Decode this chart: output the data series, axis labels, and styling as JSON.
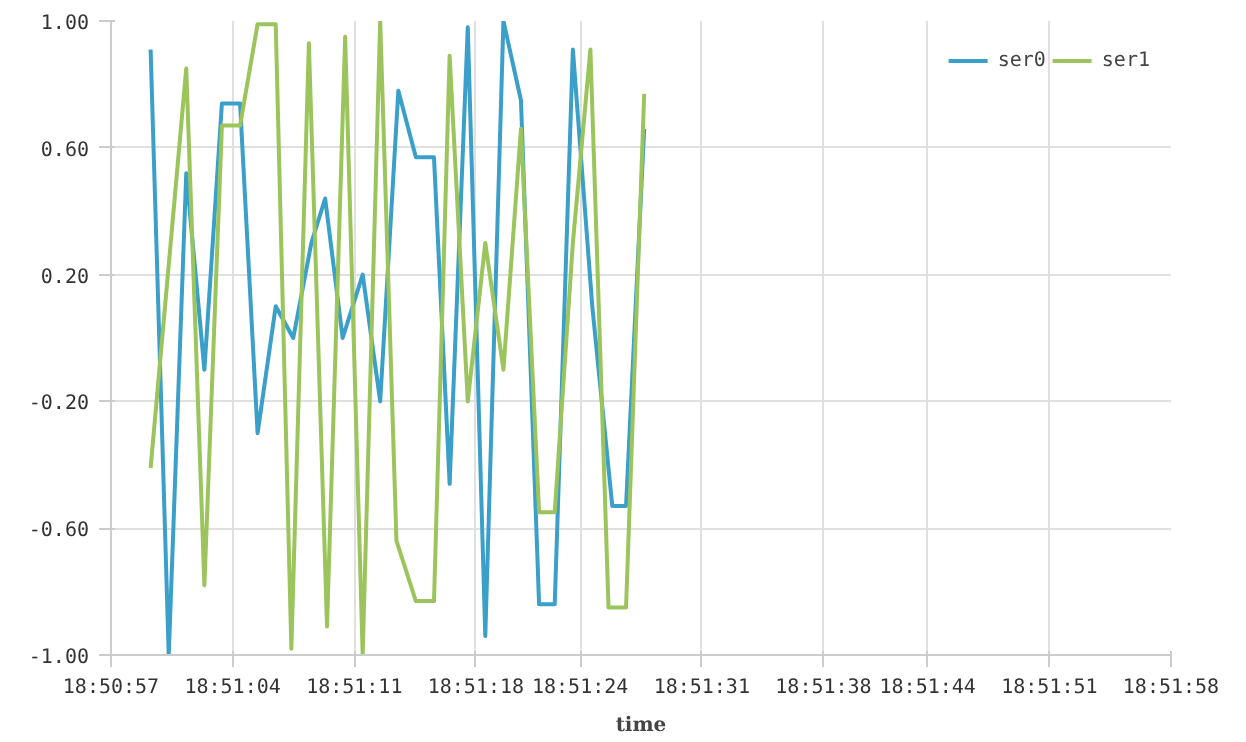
{
  "chart_data": {
    "type": "line",
    "xlabel": "time",
    "xlim": [
      18.849167,
      18.866111
    ],
    "xticks": [
      {
        "value": 18.849167,
        "label": "18:50:57"
      },
      {
        "value": 18.851111,
        "label": "18:51:04"
      },
      {
        "value": 18.853056,
        "label": "18:51:11"
      },
      {
        "value": 18.855,
        "label": "18:51:18"
      },
      {
        "value": 18.856667,
        "label": "18:51:24"
      },
      {
        "value": 18.858611,
        "label": "18:51:31"
      },
      {
        "value": 18.860556,
        "label": "18:51:38"
      },
      {
        "value": 18.862222,
        "label": "18:51:44"
      },
      {
        "value": 18.864167,
        "label": "18:51:51"
      },
      {
        "value": 18.866111,
        "label": "18:51:58"
      }
    ],
    "ylim": [
      -1,
      1
    ],
    "yticks": [
      {
        "value": -1,
        "label": "-1.00"
      },
      {
        "value": -0.6,
        "label": "-0.60"
      },
      {
        "value": -0.2,
        "label": "-0.20"
      },
      {
        "value": 0.2,
        "label": "0.20"
      },
      {
        "value": 0.6,
        "label": "0.60"
      },
      {
        "value": 1,
        "label": "1.00"
      }
    ],
    "grid": true,
    "legend": "top",
    "series": [
      {
        "name": "ser0",
        "color": "#3a9fc9",
        "x": [
          18.8498,
          18.85009,
          18.85037,
          18.85066,
          18.85094,
          18.85123,
          18.85151,
          18.8518,
          18.85208,
          18.85237,
          18.85259,
          18.85287,
          18.85319,
          18.85347,
          18.85376,
          18.85404,
          18.85433,
          18.85458,
          18.85487,
          18.85515,
          18.85544,
          18.85572,
          18.85601,
          18.85626,
          18.85655,
          18.85686,
          18.85718,
          18.8574,
          18.85769
        ],
        "values": [
          0.91,
          -1.0,
          0.52,
          -0.1,
          0.74,
          0.74,
          -0.3,
          0.1,
          0.0,
          0.3,
          0.44,
          0.0,
          0.2,
          -0.2,
          0.78,
          0.57,
          0.57,
          -0.46,
          0.98,
          -0.94,
          1.0,
          0.75,
          -0.84,
          -0.84,
          0.91,
          0.1,
          -0.53,
          -0.53,
          0.66
        ]
      },
      {
        "name": "ser1",
        "color": "#9bc45c",
        "x": [
          18.8498,
          18.85037,
          18.85066,
          18.85094,
          18.85123,
          18.85151,
          18.8518,
          18.85205,
          18.85233,
          18.85262,
          18.85291,
          18.85319,
          18.85347,
          18.85373,
          18.85404,
          18.85433,
          18.85458,
          18.85487,
          18.85515,
          18.85544,
          18.85572,
          18.85601,
          18.85626,
          18.85655,
          18.85683,
          18.85712,
          18.8574,
          18.85769
        ],
        "values": [
          -0.41,
          0.85,
          -0.78,
          0.67,
          0.67,
          0.99,
          0.99,
          -0.98,
          0.93,
          -0.91,
          0.95,
          -1.0,
          1.0,
          -0.64,
          -0.83,
          -0.83,
          0.89,
          -0.2,
          0.3,
          -0.1,
          0.66,
          -0.55,
          -0.55,
          0.3,
          0.91,
          -0.85,
          -0.85,
          0.77
        ]
      }
    ]
  }
}
